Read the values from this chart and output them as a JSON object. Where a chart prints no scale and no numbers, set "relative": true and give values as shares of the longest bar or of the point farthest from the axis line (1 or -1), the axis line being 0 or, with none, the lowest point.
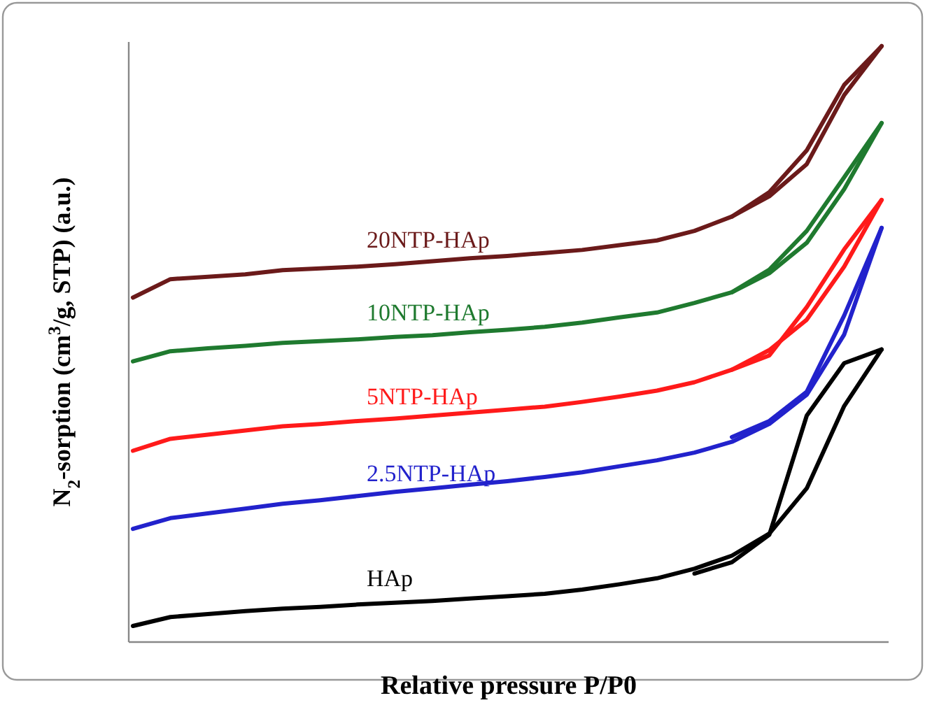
{
  "chart_data": {
    "type": "line",
    "relative": true,
    "xlabel": "Relative pressure P/P0",
    "ylabel": "N$_{2}$-sorption (cm$^{3}$/g, STP) (a.u.)",
    "legend": false,
    "line_style": "solid",
    "categories": [
      null,
      null,
      null,
      null,
      null,
      null,
      null,
      null,
      null,
      null,
      null,
      null,
      null,
      null,
      null,
      null,
      null,
      null,
      null,
      null,
      null
    ],
    "series": [
      {
        "name": "HAp",
        "color": "#000000",
        "values": [
          0.027,
          0.042,
          0.047,
          0.052,
          0.056,
          0.059,
          0.063,
          0.066,
          0.069,
          0.073,
          0.077,
          0.081,
          0.088,
          0.097,
          0.107,
          0.123,
          0.145,
          0.182,
          0.258,
          0.396,
          0.491
        ]
      },
      {
        "color": "#000000",
        "values": [
          null,
          null,
          null,
          null,
          null,
          null,
          null,
          null,
          null,
          null,
          null,
          null,
          null,
          null,
          null,
          0.115,
          0.134,
          0.18,
          0.38,
          0.468,
          0.491
        ]
      },
      {
        "name": "2.5NTP-HAp",
        "color": "#2222cc",
        "values": [
          0.19,
          0.208,
          0.216,
          0.224,
          0.232,
          0.238,
          0.245,
          0.252,
          0.258,
          0.264,
          0.27,
          0.277,
          0.285,
          0.295,
          0.305,
          0.318,
          0.336,
          0.366,
          0.415,
          0.516,
          0.695
        ]
      },
      {
        "color": "#2222cc",
        "values": [
          null,
          null,
          null,
          null,
          null,
          null,
          null,
          null,
          null,
          null,
          null,
          null,
          null,
          null,
          null,
          null,
          0.344,
          0.371,
          0.42,
          0.548,
          0.695
        ]
      },
      {
        "name": "5NTP-HAp",
        "color": "#ff1a1a",
        "values": [
          0.321,
          0.341,
          0.348,
          0.355,
          0.362,
          0.366,
          0.371,
          0.375,
          0.38,
          0.385,
          0.39,
          0.395,
          0.403,
          0.412,
          0.422,
          0.436,
          0.457,
          0.49,
          0.541,
          0.63,
          0.742
        ]
      },
      {
        "color": "#ff1a1a",
        "values": [
          null,
          null,
          null,
          null,
          null,
          null,
          null,
          null,
          null,
          null,
          null,
          null,
          null,
          null,
          null,
          null,
          0.457,
          0.481,
          0.562,
          0.659,
          0.742
        ]
      },
      {
        "name": "10NTP-HAp",
        "color": "#1f7a2f",
        "values": [
          0.471,
          0.488,
          0.493,
          0.497,
          0.502,
          0.505,
          0.508,
          0.512,
          0.515,
          0.52,
          0.524,
          0.529,
          0.536,
          0.545,
          0.553,
          0.569,
          0.587,
          0.619,
          0.67,
          0.76,
          0.871
        ]
      },
      {
        "color": "#1f7a2f",
        "values": [
          null,
          null,
          null,
          null,
          null,
          null,
          null,
          null,
          null,
          null,
          null,
          null,
          null,
          null,
          null,
          null,
          0.587,
          0.625,
          0.69,
          0.78,
          0.871
        ]
      },
      {
        "name": "20NTP-HAp",
        "color": "#6b1a1a",
        "values": [
          0.578,
          0.609,
          0.613,
          0.617,
          0.624,
          0.627,
          0.63,
          0.634,
          0.639,
          0.644,
          0.648,
          0.653,
          0.658,
          0.666,
          0.674,
          0.69,
          0.714,
          0.748,
          0.802,
          0.918,
          1.0
        ]
      },
      {
        "color": "#6b1a1a",
        "values": [
          null,
          null,
          null,
          null,
          null,
          null,
          null,
          null,
          null,
          null,
          null,
          null,
          null,
          null,
          null,
          null,
          0.714,
          0.755,
          0.825,
          0.935,
          1.0
        ]
      }
    ]
  }
}
